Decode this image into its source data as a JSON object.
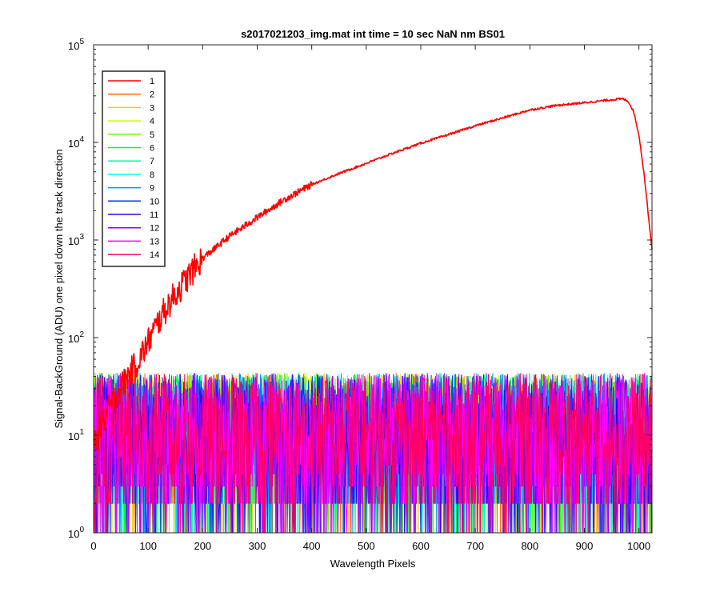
{
  "chart_data": {
    "type": "line",
    "title": "s2017021203_img.mat int time = 10 sec  NaN nm BS01",
    "xlabel": "Wavelength Pixels",
    "ylabel": "Signal-BackGround (ADU) one pixel down the track direction",
    "x_scale": "linear",
    "y_scale": "log",
    "xlim": [
      0,
      1024
    ],
    "ylim": [
      1,
      100000
    ],
    "x_ticks": [
      0,
      100,
      200,
      300,
      400,
      500,
      600,
      700,
      800,
      900,
      1000
    ],
    "x_tick_labels": [
      "0",
      "100",
      "200",
      "300",
      "400",
      "500",
      "600",
      "700",
      "800",
      "900",
      "1000"
    ],
    "y_ticks": [
      1,
      10,
      100,
      1000,
      10000,
      100000
    ],
    "y_tick_labels": [
      {
        "base": "10",
        "exp": "0"
      },
      {
        "base": "10",
        "exp": "1"
      },
      {
        "base": "10",
        "exp": "2"
      },
      {
        "base": "10",
        "exp": "3"
      },
      {
        "base": "10",
        "exp": "4"
      },
      {
        "base": "10",
        "exp": "5"
      }
    ],
    "grid": false,
    "legend_position": "top-left",
    "series": [
      {
        "name": "1",
        "color": "#ff0000",
        "x": [
          0,
          20,
          40,
          60,
          80,
          100,
          120,
          140,
          160,
          180,
          200,
          250,
          300,
          350,
          400,
          450,
          500,
          550,
          600,
          650,
          700,
          750,
          800,
          850,
          900,
          940,
          970,
          980,
          990,
          1000,
          1010,
          1020,
          1024
        ],
        "values": [
          8,
          15,
          25,
          38,
          55,
          90,
          150,
          230,
          330,
          470,
          650,
          1100,
          1700,
          2600,
          3700,
          4800,
          6100,
          7800,
          9800,
          12000,
          14800,
          17800,
          21500,
          24000,
          25500,
          27000,
          28000,
          26500,
          21000,
          12000,
          4500,
          1300,
          800
        ]
      },
      {
        "name": "2",
        "color": "#ff6a00",
        "noise_range": [
          1,
          60
        ]
      },
      {
        "name": "3",
        "color": "#ffcc00",
        "noise_range": [
          1,
          60
        ]
      },
      {
        "name": "4",
        "color": "#c8ff00",
        "noise_range": [
          1,
          60
        ]
      },
      {
        "name": "5",
        "color": "#66ff00",
        "noise_range": [
          1,
          60
        ]
      },
      {
        "name": "6",
        "color": "#00ff33",
        "noise_range": [
          1,
          60
        ]
      },
      {
        "name": "7",
        "color": "#00ff99",
        "noise_range": [
          1,
          60
        ]
      },
      {
        "name": "8",
        "color": "#00ffff",
        "noise_range": [
          1,
          60
        ]
      },
      {
        "name": "9",
        "color": "#0099ff",
        "noise_range": [
          1,
          60
        ]
      },
      {
        "name": "10",
        "color": "#0033ff",
        "noise_range": [
          1,
          60
        ]
      },
      {
        "name": "11",
        "color": "#3300ff",
        "noise_range": [
          1,
          60
        ]
      },
      {
        "name": "12",
        "color": "#9900ff",
        "noise_range": [
          1,
          60
        ]
      },
      {
        "name": "13",
        "color": "#ff00ff",
        "noise_range": [
          1,
          60
        ]
      },
      {
        "name": "14",
        "color": "#ff0066",
        "noise_range": [
          1,
          60
        ]
      }
    ]
  }
}
